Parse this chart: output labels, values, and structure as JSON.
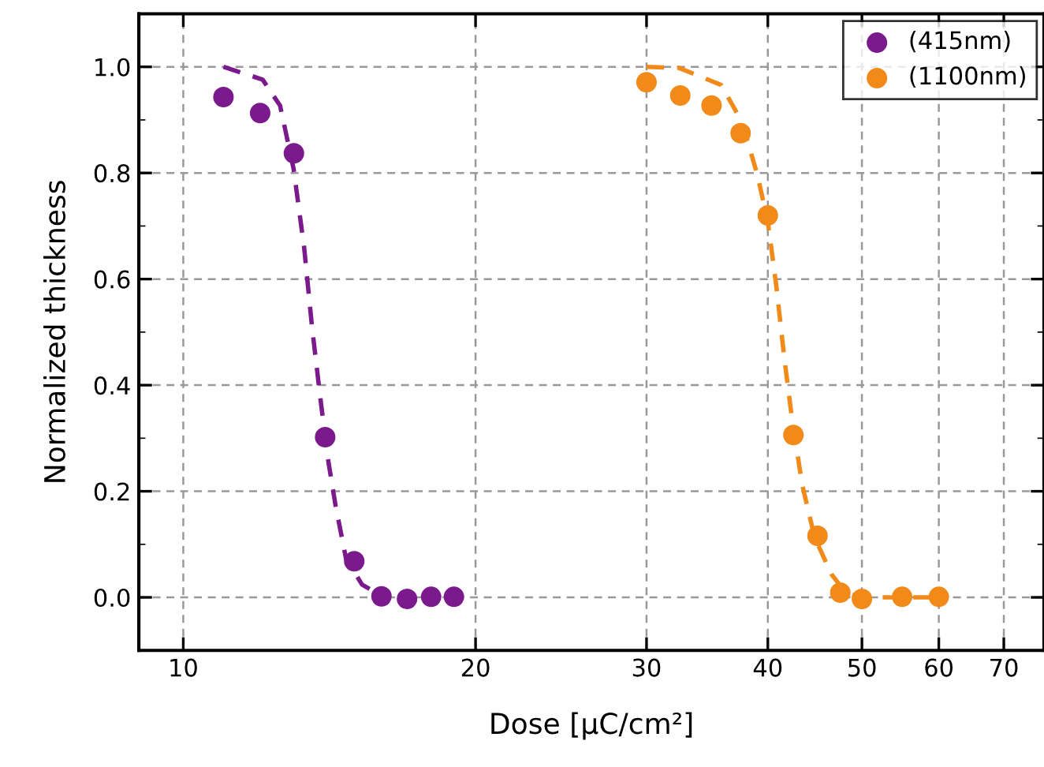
{
  "chart_data": {
    "type": "scatter",
    "xlabel": "Dose [μC/cm²]",
    "ylabel": "Normalized thickness",
    "log": "x",
    "grid": true,
    "legend": "top right",
    "xlim": [
      9,
      77
    ],
    "ylim": [
      -0.1,
      1.1
    ],
    "xticks": [
      10,
      20,
      30,
      40,
      50,
      60,
      70
    ],
    "yticks": [
      {
        "value": 0,
        "label": "0.0"
      },
      {
        "value": 0.2,
        "label": "0.2"
      },
      {
        "value": 0.4,
        "label": "0.4"
      },
      {
        "value": 0.6,
        "label": "0.6"
      },
      {
        "value": 0.8,
        "label": "0.8"
      },
      {
        "value": 1,
        "label": "1.0"
      }
    ],
    "series": [
      {
        "name": "(415nm)",
        "marker": "circle",
        "color": "#7b1a8c",
        "x": [
          11,
          12,
          13,
          14,
          15,
          16,
          17,
          18,
          19
        ],
        "values": [
          0.943,
          0.913,
          0.837,
          0.302,
          0.068,
          0.002,
          -0.003,
          0.001,
          0.001
        ]
      },
      {
        "name": "(1100nm)",
        "marker": "circle",
        "color": "#f28a1a",
        "x": [
          30,
          32.5,
          35,
          37.5,
          40,
          42.5,
          45,
          47.5,
          50,
          55,
          60
        ],
        "values": [
          0.971,
          0.946,
          0.927,
          0.875,
          0.72,
          0.306,
          0.116,
          0.009,
          -0.003,
          0.001,
          0.001
        ]
      },
      {
        "type": "line",
        "marker": "none",
        "line_style": "dashed",
        "color": "#7b1a8c",
        "x": [
          11,
          12.07,
          12.58,
          12.99,
          13.32,
          13.57,
          13.83,
          14.09,
          14.35,
          14.71,
          15.28,
          15.97
        ],
        "values": [
          1.0,
          0.976,
          0.927,
          0.808,
          0.659,
          0.51,
          0.381,
          0.262,
          0.173,
          0.073,
          0.024,
          0.004
        ]
      },
      {
        "type": "line",
        "marker": "none",
        "line_style": "dashed",
        "color": "#f28a1a",
        "x": [
          30,
          32.4,
          35.8,
          37.6,
          39,
          40,
          40.8,
          41.6,
          42.4,
          43.4,
          44.7,
          46.5,
          48.1,
          50,
          55,
          60
        ],
        "values": [
          1.0,
          0.998,
          0.966,
          0.897,
          0.798,
          0.708,
          0.589,
          0.45,
          0.331,
          0.212,
          0.113,
          0.044,
          0.009,
          0,
          0,
          0
        ]
      }
    ]
  }
}
